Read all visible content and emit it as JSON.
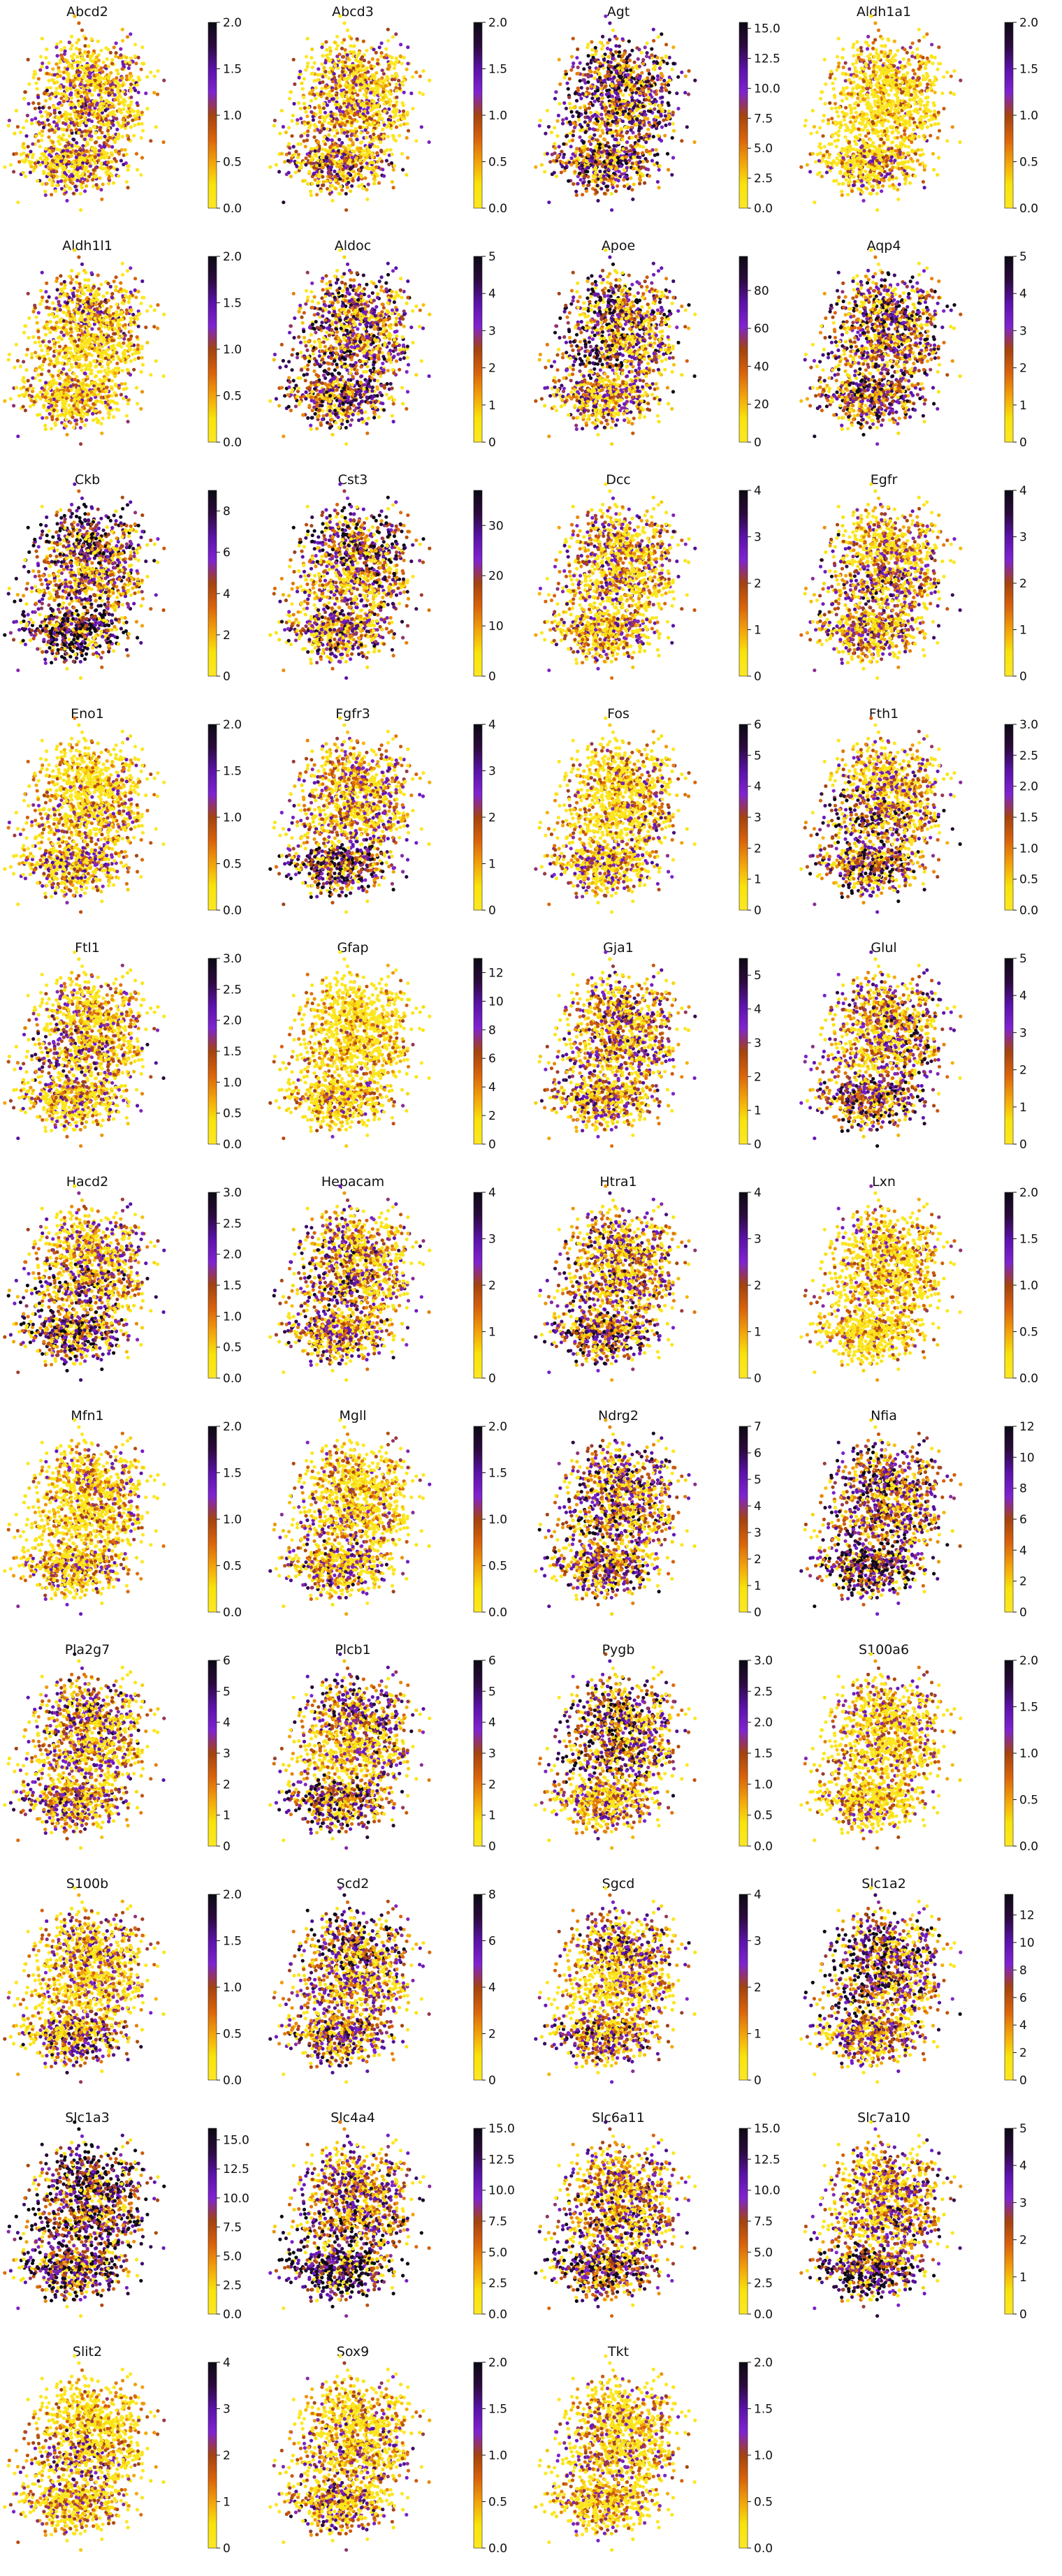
{
  "figure": {
    "colormap": [
      "#fde725",
      "#f8e40a",
      "#f2a20a",
      "#d9620b",
      "#a3430f",
      "#7f23d1",
      "#5a12a8",
      "#2b0a3d",
      "#0c0a14"
    ],
    "point_colors_note": "yellow-low to purple/black-high expression colormap"
  },
  "chart_data": [
    {
      "type": "scatter",
      "title": "Abcd2",
      "cbar_ticks": [
        "0.0",
        "0.5",
        "1.0",
        "1.5",
        "2.0"
      ],
      "vmin": 0,
      "vmax": 2.0,
      "level": 0.25
    },
    {
      "type": "scatter",
      "title": "Abcd3",
      "cbar_ticks": [
        "0.0",
        "0.5",
        "1.0",
        "1.5",
        "2.0"
      ],
      "vmin": 0,
      "vmax": 2.0,
      "level": 0.25
    },
    {
      "type": "scatter",
      "title": "Agt",
      "cbar_ticks": [
        "0.0",
        "2.5",
        "5.0",
        "7.5",
        "10.0",
        "12.5",
        "15.0"
      ],
      "vmin": 0,
      "vmax": 15.5,
      "level": 0.55
    },
    {
      "type": "scatter",
      "title": "Aldh1a1",
      "cbar_ticks": [
        "0.0",
        "0.5",
        "1.0",
        "1.5",
        "2.0"
      ],
      "vmin": 0,
      "vmax": 2.0,
      "level": 0.1
    },
    {
      "type": "scatter",
      "title": "Aldh1l1",
      "cbar_ticks": [
        "0.0",
        "0.5",
        "1.0",
        "1.5",
        "2.0"
      ],
      "vmin": 0,
      "vmax": 2.0,
      "level": 0.3
    },
    {
      "type": "scatter",
      "title": "Aldoc",
      "cbar_ticks": [
        "0",
        "1",
        "2",
        "3",
        "4",
        "5"
      ],
      "vmin": 0,
      "vmax": 5,
      "level": 0.45
    },
    {
      "type": "scatter",
      "title": "Apoe",
      "cbar_ticks": [
        "0",
        "20",
        "40",
        "60",
        "80"
      ],
      "vmin": 0,
      "vmax": 98,
      "level": 0.5
    },
    {
      "type": "scatter",
      "title": "Aqp4",
      "cbar_ticks": [
        "0",
        "1",
        "2",
        "3",
        "4",
        "5"
      ],
      "vmin": 0,
      "vmax": 5,
      "level": 0.5
    },
    {
      "type": "scatter",
      "title": "Ckb",
      "cbar_ticks": [
        "0",
        "2",
        "4",
        "6",
        "8"
      ],
      "vmin": 0,
      "vmax": 9,
      "level": 0.55
    },
    {
      "type": "scatter",
      "title": "Cst3",
      "cbar_ticks": [
        "0",
        "10",
        "20",
        "30"
      ],
      "vmin": 0,
      "vmax": 37,
      "level": 0.5
    },
    {
      "type": "scatter",
      "title": "Dcc",
      "cbar_ticks": [
        "0",
        "1",
        "2",
        "3",
        "4"
      ],
      "vmin": 0,
      "vmax": 4,
      "level": 0.2
    },
    {
      "type": "scatter",
      "title": "Egfr",
      "cbar_ticks": [
        "0",
        "1",
        "2",
        "3",
        "4"
      ],
      "vmin": 0,
      "vmax": 4,
      "level": 0.45
    },
    {
      "type": "scatter",
      "title": "Eno1",
      "cbar_ticks": [
        "0.0",
        "0.5",
        "1.0",
        "1.5",
        "2.0"
      ],
      "vmin": 0,
      "vmax": 2.0,
      "level": 0.25
    },
    {
      "type": "scatter",
      "title": "Fgfr3",
      "cbar_ticks": [
        "0",
        "1",
        "2",
        "3",
        "4"
      ],
      "vmin": 0,
      "vmax": 4,
      "level": 0.45
    },
    {
      "type": "scatter",
      "title": "Fos",
      "cbar_ticks": [
        "0",
        "1",
        "2",
        "3",
        "4",
        "5",
        "6"
      ],
      "vmin": 0,
      "vmax": 6,
      "level": 0.3
    },
    {
      "type": "scatter",
      "title": "Fth1",
      "cbar_ticks": [
        "0.0",
        "0.5",
        "1.0",
        "1.5",
        "2.0",
        "2.5",
        "3.0"
      ],
      "vmin": 0,
      "vmax": 3.0,
      "level": 0.4
    },
    {
      "type": "scatter",
      "title": "Ftl1",
      "cbar_ticks": [
        "0.0",
        "0.5",
        "1.0",
        "1.5",
        "2.0",
        "2.5",
        "3.0"
      ],
      "vmin": 0,
      "vmax": 3.0,
      "level": 0.35
    },
    {
      "type": "scatter",
      "title": "Gfap",
      "cbar_ticks": [
        "0",
        "2",
        "4",
        "6",
        "8",
        "10",
        "12"
      ],
      "vmin": 0,
      "vmax": 13,
      "level": 0.1
    },
    {
      "type": "scatter",
      "title": "Gja1",
      "cbar_ticks": [
        "0",
        "1",
        "2",
        "3",
        "4",
        "5"
      ],
      "vmin": 0,
      "vmax": 5.5,
      "level": 0.5
    },
    {
      "type": "scatter",
      "title": "Glul",
      "cbar_ticks": [
        "0",
        "1",
        "2",
        "3",
        "4",
        "5"
      ],
      "vmin": 0,
      "vmax": 5,
      "level": 0.5
    },
    {
      "type": "scatter",
      "title": "Hacd2",
      "cbar_ticks": [
        "0.0",
        "0.5",
        "1.0",
        "1.5",
        "2.0",
        "2.5",
        "3.0"
      ],
      "vmin": 0,
      "vmax": 3.0,
      "level": 0.4
    },
    {
      "type": "scatter",
      "title": "Hepacam",
      "cbar_ticks": [
        "0",
        "1",
        "2",
        "3",
        "4"
      ],
      "vmin": 0,
      "vmax": 4,
      "level": 0.45
    },
    {
      "type": "scatter",
      "title": "Htra1",
      "cbar_ticks": [
        "0",
        "1",
        "2",
        "3",
        "4"
      ],
      "vmin": 0,
      "vmax": 4,
      "level": 0.45
    },
    {
      "type": "scatter",
      "title": "Lxn",
      "cbar_ticks": [
        "0.0",
        "0.5",
        "1.0",
        "1.5",
        "2.0"
      ],
      "vmin": 0,
      "vmax": 2.0,
      "level": 0.25
    },
    {
      "type": "scatter",
      "title": "Mfn1",
      "cbar_ticks": [
        "0.0",
        "0.5",
        "1.0",
        "1.5",
        "2.0"
      ],
      "vmin": 0,
      "vmax": 2.0,
      "level": 0.25
    },
    {
      "type": "scatter",
      "title": "Mgll",
      "cbar_ticks": [
        "0.0",
        "0.5",
        "1.0",
        "1.5",
        "2.0"
      ],
      "vmin": 0,
      "vmax": 2.0,
      "level": 0.2
    },
    {
      "type": "scatter",
      "title": "Ndrg2",
      "cbar_ticks": [
        "0",
        "1",
        "2",
        "3",
        "4",
        "5",
        "6",
        "7"
      ],
      "vmin": 0,
      "vmax": 7,
      "level": 0.5
    },
    {
      "type": "scatter",
      "title": "Nfia",
      "cbar_ticks": [
        "0",
        "2",
        "4",
        "6",
        "8",
        "10",
        "12"
      ],
      "vmin": 0,
      "vmax": 12,
      "level": 0.55
    },
    {
      "type": "scatter",
      "title": "Pla2g7",
      "cbar_ticks": [
        "0",
        "1",
        "2",
        "3",
        "4",
        "5",
        "6"
      ],
      "vmin": 0,
      "vmax": 6,
      "level": 0.45
    },
    {
      "type": "scatter",
      "title": "Plcb1",
      "cbar_ticks": [
        "0",
        "1",
        "2",
        "3",
        "4",
        "5",
        "6"
      ],
      "vmin": 0,
      "vmax": 6,
      "level": 0.45
    },
    {
      "type": "scatter",
      "title": "Pygb",
      "cbar_ticks": [
        "0.0",
        "0.5",
        "1.0",
        "1.5",
        "2.0",
        "2.5",
        "3.0"
      ],
      "vmin": 0,
      "vmax": 3.0,
      "level": 0.45
    },
    {
      "type": "scatter",
      "title": "S100a6",
      "cbar_ticks": [
        "0.0",
        "0.5",
        "1.0",
        "1.5",
        "2.0"
      ],
      "vmin": 0,
      "vmax": 2.0,
      "level": 0.15
    },
    {
      "type": "scatter",
      "title": "S100b",
      "cbar_ticks": [
        "0.0",
        "0.5",
        "1.0",
        "1.5",
        "2.0"
      ],
      "vmin": 0,
      "vmax": 2.0,
      "level": 0.25
    },
    {
      "type": "scatter",
      "title": "Scd2",
      "cbar_ticks": [
        "0",
        "2",
        "4",
        "6",
        "8"
      ],
      "vmin": 0,
      "vmax": 8,
      "level": 0.5
    },
    {
      "type": "scatter",
      "title": "Sgcd",
      "cbar_ticks": [
        "0",
        "1",
        "2",
        "3",
        "4"
      ],
      "vmin": 0,
      "vmax": 4,
      "level": 0.35
    },
    {
      "type": "scatter",
      "title": "Slc1a2",
      "cbar_ticks": [
        "0",
        "2",
        "4",
        "6",
        "8",
        "10",
        "12"
      ],
      "vmin": 0,
      "vmax": 13.5,
      "level": 0.5
    },
    {
      "type": "scatter",
      "title": "Slc1a3",
      "cbar_ticks": [
        "0.0",
        "2.5",
        "5.0",
        "7.5",
        "10.0",
        "12.5",
        "15.0"
      ],
      "vmin": 0,
      "vmax": 16,
      "level": 0.6
    },
    {
      "type": "scatter",
      "title": "Slc4a4",
      "cbar_ticks": [
        "0.0",
        "2.5",
        "5.0",
        "7.5",
        "10.0",
        "12.5",
        "15.0"
      ],
      "vmin": 0,
      "vmax": 15,
      "level": 0.6
    },
    {
      "type": "scatter",
      "title": "Slc6a11",
      "cbar_ticks": [
        "0.0",
        "2.5",
        "5.0",
        "7.5",
        "10.0",
        "12.5",
        "15.0"
      ],
      "vmin": 0,
      "vmax": 15,
      "level": 0.6
    },
    {
      "type": "scatter",
      "title": "Slc7a10",
      "cbar_ticks": [
        "0",
        "1",
        "2",
        "3",
        "4",
        "5"
      ],
      "vmin": 0,
      "vmax": 5,
      "level": 0.55
    },
    {
      "type": "scatter",
      "title": "Slit2",
      "cbar_ticks": [
        "0",
        "1",
        "2",
        "3",
        "4"
      ],
      "vmin": 0,
      "vmax": 4,
      "level": 0.25
    },
    {
      "type": "scatter",
      "title": "Sox9",
      "cbar_ticks": [
        "0.0",
        "0.5",
        "1.0",
        "1.5",
        "2.0"
      ],
      "vmin": 0,
      "vmax": 2.0,
      "level": 0.3
    },
    {
      "type": "scatter",
      "title": "Tkt",
      "cbar_ticks": [
        "0.0",
        "0.5",
        "1.0",
        "1.5",
        "2.0"
      ],
      "vmin": 0,
      "vmax": 2.0,
      "level": 0.3
    }
  ]
}
